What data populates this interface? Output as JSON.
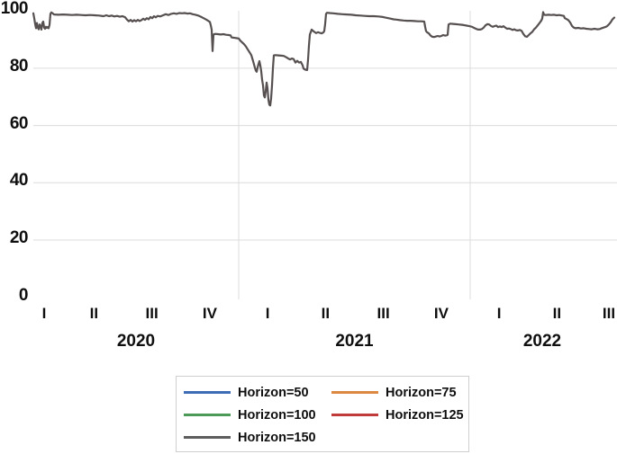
{
  "colors": {
    "background": "#ffffff",
    "grid": "#dcdcdc",
    "legend_border": "#cfcfcf",
    "text": "#0f0f0f",
    "line": "#575050"
  },
  "chart_data": {
    "type": "line",
    "title": "",
    "xlabel": "",
    "ylabel": "",
    "ylim": [
      0,
      100
    ],
    "y_ticks": [
      0,
      20,
      40,
      60,
      80,
      100
    ],
    "grid": {
      "horizontal_gridlines_at": [
        20,
        40,
        60,
        80
      ],
      "vertical_year_separators": true,
      "legend_position": "bottom"
    },
    "x_axis": {
      "unit": "quarters_since_2020Q1",
      "range_q": [
        0,
        10.53
      ],
      "quarter_labels": [
        "I",
        "II",
        "III",
        "IV",
        "I",
        "II",
        "III",
        "IV",
        "I",
        "II",
        "III"
      ],
      "year_labels": [
        "2020",
        "2021",
        "2022"
      ],
      "year_boundaries_q": [
        0,
        4,
        8,
        10.53
      ]
    },
    "legend": {
      "items": [
        {
          "label": "Horizon=50",
          "color": "#3e6cb5"
        },
        {
          "label": "Horizon=75",
          "color": "#dc8742"
        },
        {
          "label": "Horizon=100",
          "color": "#4c9a58"
        },
        {
          "label": "Horizon=125",
          "color": "#bf3b3c"
        },
        {
          "label": "Horizon=150",
          "color": "#5d5d5d"
        }
      ]
    },
    "series": [
      {
        "name": "Horizon=150",
        "color": "#575050",
        "points": [
          [
            0.451,
            99.2
          ],
          [
            0.467,
            97.5
          ],
          [
            0.482,
            95.5
          ],
          [
            0.498,
            94.0
          ],
          [
            0.514,
            95.8
          ],
          [
            0.529,
            94.2
          ],
          [
            0.545,
            93.6
          ],
          [
            0.56,
            95.3
          ],
          [
            0.576,
            94.6
          ],
          [
            0.591,
            93.5
          ],
          [
            0.607,
            95.8
          ],
          [
            0.623,
            96.3
          ],
          [
            0.638,
            94.2
          ],
          [
            0.654,
            93.8
          ],
          [
            0.669,
            94.5
          ],
          [
            0.685,
            94.1
          ],
          [
            0.7,
            94.4
          ],
          [
            0.716,
            94.0
          ],
          [
            0.731,
            95.2
          ],
          [
            0.747,
            99.0
          ],
          [
            0.763,
            99.5
          ],
          [
            0.778,
            99.3
          ],
          [
            0.809,
            98.8
          ],
          [
            0.887,
            98.7
          ],
          [
            0.965,
            98.8
          ],
          [
            1.043,
            98.7
          ],
          [
            1.121,
            98.6
          ],
          [
            1.198,
            98.7
          ],
          [
            1.276,
            98.6
          ],
          [
            1.354,
            98.5
          ],
          [
            1.432,
            98.6
          ],
          [
            1.51,
            98.5
          ],
          [
            1.588,
            98.4
          ],
          [
            1.665,
            98.2
          ],
          [
            1.712,
            98.5
          ],
          [
            1.759,
            98.2
          ],
          [
            1.805,
            98.4
          ],
          [
            1.852,
            98.1
          ],
          [
            1.899,
            98.3
          ],
          [
            1.946,
            98.0
          ],
          [
            1.992,
            98.2
          ],
          [
            2.039,
            97.8
          ],
          [
            2.07,
            97.0
          ],
          [
            2.101,
            96.4
          ],
          [
            2.132,
            96.9
          ],
          [
            2.163,
            96.3
          ],
          [
            2.195,
            96.8
          ],
          [
            2.226,
            96.4
          ],
          [
            2.257,
            96.9
          ],
          [
            2.288,
            96.5
          ],
          [
            2.319,
            96.8
          ],
          [
            2.35,
            97.3
          ],
          [
            2.381,
            96.9
          ],
          [
            2.412,
            97.5
          ],
          [
            2.444,
            97.1
          ],
          [
            2.475,
            97.9
          ],
          [
            2.506,
            97.5
          ],
          [
            2.537,
            98.2
          ],
          [
            2.568,
            97.8
          ],
          [
            2.599,
            98.3
          ],
          [
            2.646,
            98.1
          ],
          [
            2.693,
            98.5
          ],
          [
            2.739,
            98.9
          ],
          [
            2.786,
            98.6
          ],
          [
            2.833,
            99.0
          ],
          [
            2.879,
            99.2
          ],
          [
            2.926,
            99.0
          ],
          [
            2.973,
            99.3
          ],
          [
            3.019,
            99.2
          ],
          [
            3.066,
            99.3
          ],
          [
            3.113,
            99.1
          ],
          [
            3.159,
            99.2
          ],
          [
            3.206,
            98.9
          ],
          [
            3.253,
            98.7
          ],
          [
            3.3,
            98.4
          ],
          [
            3.346,
            98.0
          ],
          [
            3.393,
            97.5
          ],
          [
            3.44,
            97.0
          ],
          [
            3.471,
            96.6
          ],
          [
            3.502,
            96.2
          ],
          [
            3.517,
            95.0
          ],
          [
            3.533,
            93.5
          ],
          [
            3.549,
            86.0
          ],
          [
            3.564,
            91.8
          ],
          [
            3.595,
            92.0
          ],
          [
            3.642,
            91.9
          ],
          [
            3.689,
            91.8
          ],
          [
            3.735,
            91.9
          ],
          [
            3.782,
            91.7
          ],
          [
            3.829,
            91.6
          ],
          [
            3.86,
            91.5
          ],
          [
            3.875,
            90.8
          ],
          [
            3.906,
            90.7
          ],
          [
            3.938,
            90.6
          ],
          [
            3.969,
            90.5
          ],
          [
            4.0,
            90.4
          ],
          [
            4.031,
            89.6
          ],
          [
            4.062,
            89.0
          ],
          [
            4.093,
            88.4
          ],
          [
            4.125,
            87.6
          ],
          [
            4.156,
            86.6
          ],
          [
            4.187,
            85.6
          ],
          [
            4.218,
            84.6
          ],
          [
            4.249,
            82.5
          ],
          [
            4.28,
            80.2
          ],
          [
            4.296,
            79.2
          ],
          [
            4.311,
            78.8
          ],
          [
            4.327,
            80.3
          ],
          [
            4.342,
            81.5
          ],
          [
            4.358,
            82.5
          ],
          [
            4.374,
            81.0
          ],
          [
            4.389,
            79.0
          ],
          [
            4.405,
            76.0
          ],
          [
            4.42,
            74.0
          ],
          [
            4.436,
            70.5
          ],
          [
            4.451,
            69.8
          ],
          [
            4.467,
            72.0
          ],
          [
            4.482,
            75.0
          ],
          [
            4.498,
            73.0
          ],
          [
            4.514,
            69.0
          ],
          [
            4.529,
            67.3
          ],
          [
            4.545,
            67.0
          ],
          [
            4.56,
            69.5
          ],
          [
            4.576,
            74.0
          ],
          [
            4.591,
            80.0
          ],
          [
            4.607,
            84.5
          ],
          [
            4.638,
            84.6
          ],
          [
            4.685,
            84.5
          ],
          [
            4.731,
            84.4
          ],
          [
            4.778,
            84.3
          ],
          [
            4.825,
            83.8
          ],
          [
            4.856,
            83.4
          ],
          [
            4.887,
            83.1
          ],
          [
            4.918,
            83.4
          ],
          [
            4.949,
            83.2
          ],
          [
            4.98,
            82.0
          ],
          [
            5.012,
            82.6
          ],
          [
            5.043,
            82.0
          ],
          [
            5.074,
            82.2
          ],
          [
            5.105,
            81.0
          ],
          [
            5.121,
            79.9
          ],
          [
            5.152,
            79.5
          ],
          [
            5.183,
            79.4
          ],
          [
            5.198,
            83.0
          ],
          [
            5.214,
            88.0
          ],
          [
            5.23,
            91.8
          ],
          [
            5.245,
            92.6
          ],
          [
            5.261,
            93.5
          ],
          [
            5.276,
            93.2
          ],
          [
            5.307,
            92.7
          ],
          [
            5.338,
            92.3
          ],
          [
            5.37,
            92.6
          ],
          [
            5.401,
            92.4
          ],
          [
            5.432,
            92.2
          ],
          [
            5.463,
            92.5
          ],
          [
            5.478,
            93.0
          ],
          [
            5.494,
            95.5
          ],
          [
            5.51,
            99.0
          ],
          [
            5.525,
            99.4
          ],
          [
            5.572,
            99.3
          ],
          [
            5.634,
            99.2
          ],
          [
            5.712,
            99.0
          ],
          [
            5.79,
            98.9
          ],
          [
            5.868,
            98.8
          ],
          [
            5.945,
            98.7
          ],
          [
            6.023,
            98.5
          ],
          [
            6.101,
            98.4
          ],
          [
            6.179,
            98.3
          ],
          [
            6.257,
            98.2
          ],
          [
            6.334,
            98.2
          ],
          [
            6.412,
            98.1
          ],
          [
            6.49,
            97.9
          ],
          [
            6.537,
            97.7
          ],
          [
            6.584,
            97.5
          ],
          [
            6.63,
            97.3
          ],
          [
            6.677,
            97.1
          ],
          [
            6.724,
            97.0
          ],
          [
            6.786,
            96.8
          ],
          [
            6.848,
            96.7
          ],
          [
            6.91,
            96.6
          ],
          [
            6.973,
            96.6
          ],
          [
            7.035,
            96.5
          ],
          [
            7.097,
            96.4
          ],
          [
            7.159,
            96.4
          ],
          [
            7.206,
            96.3
          ],
          [
            7.222,
            94.5
          ],
          [
            7.237,
            93.0
          ],
          [
            7.253,
            92.6
          ],
          [
            7.284,
            92.2
          ],
          [
            7.315,
            91.4
          ],
          [
            7.346,
            91.0
          ],
          [
            7.377,
            90.9
          ],
          [
            7.408,
            91.1
          ],
          [
            7.439,
            91.3
          ],
          [
            7.471,
            91.1
          ],
          [
            7.502,
            91.3
          ],
          [
            7.533,
            91.6
          ],
          [
            7.564,
            91.4
          ],
          [
            7.595,
            91.5
          ],
          [
            7.611,
            91.7
          ],
          [
            7.626,
            95.3
          ],
          [
            7.657,
            95.6
          ],
          [
            7.704,
            95.5
          ],
          [
            7.751,
            95.4
          ],
          [
            7.798,
            95.3
          ],
          [
            7.844,
            95.2
          ],
          [
            7.891,
            95.1
          ],
          [
            7.938,
            94.9
          ],
          [
            7.984,
            94.7
          ],
          [
            8.031,
            94.5
          ],
          [
            8.078,
            94.0
          ],
          [
            8.109,
            93.7
          ],
          [
            8.14,
            93.5
          ],
          [
            8.171,
            93.5
          ],
          [
            8.202,
            93.7
          ],
          [
            8.233,
            94.2
          ],
          [
            8.265,
            95.0
          ],
          [
            8.296,
            95.4
          ],
          [
            8.327,
            95.3
          ],
          [
            8.358,
            94.8
          ],
          [
            8.389,
            94.5
          ],
          [
            8.42,
            94.7
          ],
          [
            8.451,
            94.9
          ],
          [
            8.482,
            94.4
          ],
          [
            8.513,
            94.6
          ],
          [
            8.544,
            94.4
          ],
          [
            8.576,
            94.7
          ],
          [
            8.607,
            94.2
          ],
          [
            8.638,
            93.8
          ],
          [
            8.669,
            93.9
          ],
          [
            8.7,
            93.7
          ],
          [
            8.731,
            93.4
          ],
          [
            8.762,
            93.6
          ],
          [
            8.793,
            93.3
          ],
          [
            8.825,
            93.2
          ],
          [
            8.856,
            93.4
          ],
          [
            8.887,
            93.1
          ],
          [
            8.918,
            92.0
          ],
          [
            8.949,
            91.2
          ],
          [
            8.98,
            91.0
          ],
          [
            9.011,
            91.6
          ],
          [
            9.042,
            92.2
          ],
          [
            9.073,
            92.7
          ],
          [
            9.105,
            93.6
          ],
          [
            9.136,
            94.2
          ],
          [
            9.167,
            95.0
          ],
          [
            9.198,
            95.8
          ],
          [
            9.229,
            96.7
          ],
          [
            9.245,
            97.4
          ],
          [
            9.26,
            99.6
          ],
          [
            9.276,
            98.7
          ],
          [
            9.307,
            98.6
          ],
          [
            9.354,
            98.7
          ],
          [
            9.4,
            98.6
          ],
          [
            9.447,
            98.7
          ],
          [
            9.494,
            98.5
          ],
          [
            9.541,
            98.6
          ],
          [
            9.587,
            98.4
          ],
          [
            9.618,
            98.3
          ],
          [
            9.634,
            97.5
          ],
          [
            9.665,
            97.2
          ],
          [
            9.696,
            96.8
          ],
          [
            9.727,
            96.0
          ],
          [
            9.758,
            94.8
          ],
          [
            9.79,
            94.2
          ],
          [
            9.821,
            94.0
          ],
          [
            9.868,
            94.1
          ],
          [
            9.914,
            93.9
          ],
          [
            9.961,
            94.0
          ],
          [
            10.008,
            93.8
          ],
          [
            10.054,
            93.7
          ],
          [
            10.101,
            93.6
          ],
          [
            10.148,
            93.8
          ],
          [
            10.195,
            93.6
          ],
          [
            10.241,
            93.7
          ],
          [
            10.272,
            94.0
          ],
          [
            10.303,
            94.2
          ],
          [
            10.334,
            94.4
          ],
          [
            10.366,
            94.7
          ],
          [
            10.397,
            95.3
          ],
          [
            10.428,
            96.1
          ],
          [
            10.459,
            97.1
          ],
          [
            10.49,
            97.7
          ]
        ]
      }
    ]
  }
}
